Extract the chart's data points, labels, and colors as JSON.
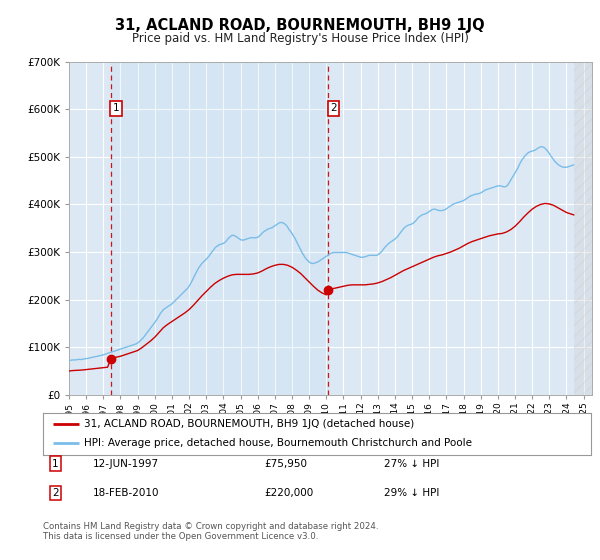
{
  "title": "31, ACLAND ROAD, BOURNEMOUTH, BH9 1JQ",
  "subtitle": "Price paid vs. HM Land Registry's House Price Index (HPI)",
  "plot_bg_color": "#dce9f5",
  "ylim": [
    0,
    700000
  ],
  "yticks": [
    0,
    100000,
    200000,
    300000,
    400000,
    500000,
    600000,
    700000
  ],
  "xlim_start": 1995.0,
  "xlim_end": 2025.5,
  "hpi_color": "#7abde8",
  "price_color": "#cc0000",
  "sale1_x": 1997.44,
  "sale1_y": 75950,
  "sale2_x": 2010.12,
  "sale2_y": 220000,
  "legend_line1": "31, ACLAND ROAD, BOURNEMOUTH, BH9 1JQ (detached house)",
  "legend_line2": "HPI: Average price, detached house, Bournemouth Christchurch and Poole",
  "note1_label": "1",
  "note1_date": "12-JUN-1997",
  "note1_price": "£75,950",
  "note1_hpi": "27% ↓ HPI",
  "note2_label": "2",
  "note2_date": "18-FEB-2010",
  "note2_price": "£220,000",
  "note2_hpi": "29% ↓ HPI",
  "footer": "Contains HM Land Registry data © Crown copyright and database right 2024.\nThis data is licensed under the Open Government Licence v3.0.",
  "hpi_data_x": [
    1995.0,
    1995.08,
    1995.17,
    1995.25,
    1995.33,
    1995.42,
    1995.5,
    1995.58,
    1995.67,
    1995.75,
    1995.83,
    1995.92,
    1996.0,
    1996.08,
    1996.17,
    1996.25,
    1996.33,
    1996.42,
    1996.5,
    1996.58,
    1996.67,
    1996.75,
    1996.83,
    1996.92,
    1997.0,
    1997.08,
    1997.17,
    1997.25,
    1997.33,
    1997.42,
    1997.5,
    1997.58,
    1997.67,
    1997.75,
    1997.83,
    1997.92,
    1998.0,
    1998.08,
    1998.17,
    1998.25,
    1998.33,
    1998.42,
    1998.5,
    1998.58,
    1998.67,
    1998.75,
    1998.83,
    1998.92,
    1999.0,
    1999.08,
    1999.17,
    1999.25,
    1999.33,
    1999.42,
    1999.5,
    1999.58,
    1999.67,
    1999.75,
    1999.83,
    1999.92,
    2000.0,
    2000.08,
    2000.17,
    2000.25,
    2000.33,
    2000.42,
    2000.5,
    2000.58,
    2000.67,
    2000.75,
    2000.83,
    2000.92,
    2001.0,
    2001.08,
    2001.17,
    2001.25,
    2001.33,
    2001.42,
    2001.5,
    2001.58,
    2001.67,
    2001.75,
    2001.83,
    2001.92,
    2002.0,
    2002.08,
    2002.17,
    2002.25,
    2002.33,
    2002.42,
    2002.5,
    2002.58,
    2002.67,
    2002.75,
    2002.83,
    2002.92,
    2003.0,
    2003.08,
    2003.17,
    2003.25,
    2003.33,
    2003.42,
    2003.5,
    2003.58,
    2003.67,
    2003.75,
    2003.83,
    2003.92,
    2004.0,
    2004.08,
    2004.17,
    2004.25,
    2004.33,
    2004.42,
    2004.5,
    2004.58,
    2004.67,
    2004.75,
    2004.83,
    2004.92,
    2005.0,
    2005.08,
    2005.17,
    2005.25,
    2005.33,
    2005.42,
    2005.5,
    2005.58,
    2005.67,
    2005.75,
    2005.83,
    2005.92,
    2006.0,
    2006.08,
    2006.17,
    2006.25,
    2006.33,
    2006.42,
    2006.5,
    2006.58,
    2006.67,
    2006.75,
    2006.83,
    2006.92,
    2007.0,
    2007.08,
    2007.17,
    2007.25,
    2007.33,
    2007.42,
    2007.5,
    2007.58,
    2007.67,
    2007.75,
    2007.83,
    2007.92,
    2008.0,
    2008.08,
    2008.17,
    2008.25,
    2008.33,
    2008.42,
    2008.5,
    2008.58,
    2008.67,
    2008.75,
    2008.83,
    2008.92,
    2009.0,
    2009.08,
    2009.17,
    2009.25,
    2009.33,
    2009.42,
    2009.5,
    2009.58,
    2009.67,
    2009.75,
    2009.83,
    2009.92,
    2010.0,
    2010.08,
    2010.17,
    2010.25,
    2010.33,
    2010.42,
    2010.5,
    2010.58,
    2010.67,
    2010.75,
    2010.83,
    2010.92,
    2011.0,
    2011.08,
    2011.17,
    2011.25,
    2011.33,
    2011.42,
    2011.5,
    2011.58,
    2011.67,
    2011.75,
    2011.83,
    2011.92,
    2012.0,
    2012.08,
    2012.17,
    2012.25,
    2012.33,
    2012.42,
    2012.5,
    2012.58,
    2012.67,
    2012.75,
    2012.83,
    2012.92,
    2013.0,
    2013.08,
    2013.17,
    2013.25,
    2013.33,
    2013.42,
    2013.5,
    2013.58,
    2013.67,
    2013.75,
    2013.83,
    2013.92,
    2014.0,
    2014.08,
    2014.17,
    2014.25,
    2014.33,
    2014.42,
    2014.5,
    2014.58,
    2014.67,
    2014.75,
    2014.83,
    2014.92,
    2015.0,
    2015.08,
    2015.17,
    2015.25,
    2015.33,
    2015.42,
    2015.5,
    2015.58,
    2015.67,
    2015.75,
    2015.83,
    2015.92,
    2016.0,
    2016.08,
    2016.17,
    2016.25,
    2016.33,
    2016.42,
    2016.5,
    2016.58,
    2016.67,
    2016.75,
    2016.83,
    2016.92,
    2017.0,
    2017.08,
    2017.17,
    2017.25,
    2017.33,
    2017.42,
    2017.5,
    2017.58,
    2017.67,
    2017.75,
    2017.83,
    2017.92,
    2018.0,
    2018.08,
    2018.17,
    2018.25,
    2018.33,
    2018.42,
    2018.5,
    2018.58,
    2018.67,
    2018.75,
    2018.83,
    2018.92,
    2019.0,
    2019.08,
    2019.17,
    2019.25,
    2019.33,
    2019.42,
    2019.5,
    2019.58,
    2019.67,
    2019.75,
    2019.83,
    2019.92,
    2020.0,
    2020.08,
    2020.17,
    2020.25,
    2020.33,
    2020.42,
    2020.5,
    2020.58,
    2020.67,
    2020.75,
    2020.83,
    2020.92,
    2021.0,
    2021.08,
    2021.17,
    2021.25,
    2021.33,
    2021.42,
    2021.5,
    2021.58,
    2021.67,
    2021.75,
    2021.83,
    2021.92,
    2022.0,
    2022.08,
    2022.17,
    2022.25,
    2022.33,
    2022.42,
    2022.5,
    2022.58,
    2022.67,
    2022.75,
    2022.83,
    2022.92,
    2023.0,
    2023.08,
    2023.17,
    2023.25,
    2023.33,
    2023.42,
    2023.5,
    2023.58,
    2023.67,
    2023.75,
    2023.83,
    2023.92,
    2024.0,
    2024.08,
    2024.17,
    2024.25,
    2024.33,
    2024.42
  ],
  "hpi_data_y": [
    72000,
    72500,
    73000,
    73500,
    73000,
    73500,
    74000,
    74500,
    74000,
    74500,
    75000,
    75500,
    76000,
    76500,
    77000,
    78000,
    78500,
    79000,
    80000,
    80500,
    81000,
    82000,
    82500,
    83000,
    84000,
    85000,
    86000,
    87000,
    88000,
    89000,
    90000,
    91000,
    92000,
    93000,
    94000,
    95000,
    96000,
    97000,
    98000,
    99000,
    100000,
    101000,
    102000,
    103000,
    104000,
    105000,
    106000,
    107000,
    109000,
    111000,
    114000,
    117000,
    120000,
    124000,
    128000,
    132000,
    136000,
    140000,
    144000,
    148000,
    152000,
    156000,
    161000,
    166000,
    171000,
    175000,
    179000,
    181000,
    183000,
    185000,
    187000,
    189000,
    191000,
    194000,
    197000,
    200000,
    203000,
    206000,
    209000,
    212000,
    215000,
    218000,
    221000,
    224000,
    228000,
    233000,
    239000,
    245000,
    251000,
    257000,
    263000,
    268000,
    272000,
    276000,
    279000,
    282000,
    285000,
    288000,
    292000,
    296000,
    300000,
    304000,
    308000,
    311000,
    313000,
    315000,
    316000,
    317000,
    318000,
    320000,
    323000,
    327000,
    330000,
    333000,
    335000,
    335000,
    334000,
    332000,
    330000,
    328000,
    326000,
    325000,
    325000,
    326000,
    327000,
    328000,
    329000,
    330000,
    330000,
    330000,
    330000,
    330000,
    331000,
    333000,
    336000,
    339000,
    342000,
    344000,
    346000,
    348000,
    349000,
    350000,
    351000,
    353000,
    355000,
    357000,
    359000,
    361000,
    362000,
    362000,
    361000,
    359000,
    356000,
    352000,
    347000,
    343000,
    339000,
    334000,
    329000,
    323000,
    317000,
    311000,
    305000,
    299000,
    294000,
    289000,
    285000,
    282000,
    279000,
    277000,
    276000,
    276000,
    277000,
    278000,
    279000,
    281000,
    283000,
    285000,
    287000,
    289000,
    291000,
    293000,
    295000,
    297000,
    298000,
    299000,
    299000,
    299000,
    299000,
    299000,
    299000,
    299000,
    299000,
    299000,
    299000,
    298000,
    297000,
    296000,
    295000,
    294000,
    293000,
    292000,
    291000,
    290000,
    289000,
    289000,
    289000,
    290000,
    291000,
    292000,
    293000,
    293000,
    293000,
    293000,
    293000,
    293000,
    294000,
    296000,
    299000,
    302000,
    306000,
    310000,
    313000,
    316000,
    319000,
    321000,
    323000,
    325000,
    327000,
    330000,
    333000,
    337000,
    341000,
    345000,
    349000,
    352000,
    354000,
    356000,
    357000,
    358000,
    359000,
    361000,
    364000,
    367000,
    371000,
    374000,
    376000,
    378000,
    379000,
    380000,
    381000,
    383000,
    385000,
    387000,
    389000,
    390000,
    390000,
    389000,
    388000,
    387000,
    387000,
    387000,
    388000,
    389000,
    391000,
    393000,
    395000,
    397000,
    399000,
    401000,
    402000,
    403000,
    404000,
    405000,
    406000,
    407000,
    408000,
    410000,
    412000,
    414000,
    416000,
    418000,
    419000,
    420000,
    421000,
    422000,
    422000,
    423000,
    424000,
    426000,
    428000,
    430000,
    431000,
    432000,
    433000,
    434000,
    435000,
    436000,
    437000,
    438000,
    439000,
    439000,
    439000,
    438000,
    437000,
    437000,
    438000,
    441000,
    446000,
    451000,
    456000,
    461000,
    466000,
    471000,
    477000,
    483000,
    489000,
    494000,
    498000,
    502000,
    505000,
    508000,
    510000,
    511000,
    512000,
    513000,
    514000,
    516000,
    518000,
    520000,
    521000,
    521000,
    520000,
    518000,
    515000,
    511000,
    507000,
    502000,
    498000,
    494000,
    490000,
    487000,
    484000,
    482000,
    480000,
    479000,
    478000,
    478000,
    478000,
    479000,
    480000,
    481000,
    482000,
    483000
  ],
  "price_data_x": [
    1995.0,
    1995.25,
    1995.5,
    1995.75,
    1996.0,
    1996.25,
    1996.5,
    1996.75,
    1997.0,
    1997.25,
    1997.44,
    1997.5,
    1997.75,
    1998.0,
    1998.25,
    1998.5,
    1998.75,
    1999.0,
    1999.25,
    1999.5,
    1999.75,
    2000.0,
    2000.25,
    2000.5,
    2000.75,
    2001.0,
    2001.25,
    2001.5,
    2001.75,
    2002.0,
    2002.25,
    2002.5,
    2002.75,
    2003.0,
    2003.25,
    2003.5,
    2003.75,
    2004.0,
    2004.25,
    2004.5,
    2004.75,
    2005.0,
    2005.25,
    2005.5,
    2005.75,
    2006.0,
    2006.25,
    2006.5,
    2006.75,
    2007.0,
    2007.25,
    2007.5,
    2007.75,
    2008.0,
    2008.25,
    2008.5,
    2008.75,
    2009.0,
    2009.25,
    2009.5,
    2009.75,
    2010.0,
    2010.12,
    2010.25,
    2010.5,
    2010.75,
    2011.0,
    2011.25,
    2011.5,
    2011.75,
    2012.0,
    2012.25,
    2012.5,
    2012.75,
    2013.0,
    2013.25,
    2013.5,
    2013.75,
    2014.0,
    2014.25,
    2014.5,
    2014.75,
    2015.0,
    2015.25,
    2015.5,
    2015.75,
    2016.0,
    2016.25,
    2016.5,
    2016.75,
    2017.0,
    2017.25,
    2017.5,
    2017.75,
    2018.0,
    2018.25,
    2018.5,
    2018.75,
    2019.0,
    2019.25,
    2019.5,
    2019.75,
    2020.0,
    2020.25,
    2020.5,
    2020.75,
    2021.0,
    2021.25,
    2021.5,
    2021.75,
    2022.0,
    2022.25,
    2022.5,
    2022.75,
    2023.0,
    2023.25,
    2023.5,
    2023.75,
    2024.0,
    2024.25,
    2024.42
  ],
  "price_data_y": [
    50000,
    51000,
    51500,
    52000,
    53000,
    54000,
    55000,
    56000,
    57000,
    58000,
    75950,
    77000,
    79000,
    81000,
    84000,
    87000,
    90000,
    93000,
    99000,
    106000,
    113000,
    121000,
    131000,
    141000,
    148000,
    154000,
    160000,
    166000,
    172000,
    179000,
    188000,
    198000,
    208000,
    217000,
    226000,
    234000,
    240000,
    245000,
    249000,
    252000,
    253000,
    253000,
    253000,
    253000,
    254000,
    256000,
    260000,
    265000,
    269000,
    272000,
    274000,
    274000,
    272000,
    268000,
    262000,
    255000,
    246000,
    237000,
    228000,
    220000,
    214000,
    210000,
    220000,
    222000,
    224000,
    226000,
    228000,
    230000,
    231000,
    231000,
    231000,
    231000,
    232000,
    233000,
    235000,
    238000,
    242000,
    246000,
    251000,
    256000,
    261000,
    265000,
    269000,
    273000,
    277000,
    281000,
    285000,
    289000,
    292000,
    294000,
    297000,
    300000,
    304000,
    308000,
    313000,
    318000,
    322000,
    325000,
    328000,
    331000,
    334000,
    336000,
    338000,
    339000,
    342000,
    347000,
    354000,
    363000,
    373000,
    382000,
    390000,
    396000,
    400000,
    402000,
    401000,
    398000,
    393000,
    388000,
    383000,
    380000,
    378000
  ]
}
